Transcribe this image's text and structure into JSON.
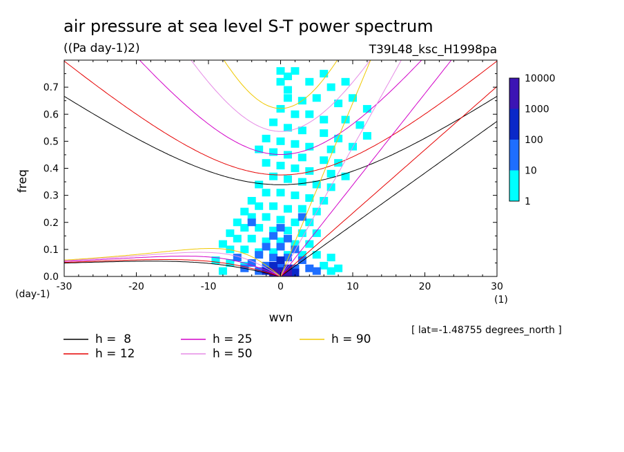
{
  "chart_data": {
    "type": "heatmap",
    "title": "air pressure at sea level S-T power spectrum",
    "units": "((Pa day-1)2)",
    "run_label": "T39L48_ksc_H1998pa",
    "xlabel": "wvn",
    "ylabel": "freq",
    "x_unit": "(1)",
    "y_unit": "(day-1)",
    "xlim": [
      -30,
      30
    ],
    "ylim": [
      0,
      0.8
    ],
    "x_ticks": [
      -30,
      -20,
      -10,
      0,
      10,
      20,
      30
    ],
    "x_tick_labels": [
      "-30",
      "-20",
      "-10",
      "0",
      "10",
      "20",
      "30"
    ],
    "y_ticks": [
      0,
      0.1,
      0.2,
      0.3,
      0.4,
      0.5,
      0.6,
      0.7
    ],
    "y_tick_labels": [
      "0.0",
      "0.1",
      "0.2",
      "0.3",
      "0.4",
      "0.5",
      "0.6",
      "0.7"
    ],
    "annotation": "[ lat=-1.48755 degrees_north ]",
    "colorbar": {
      "levels": [
        1,
        10,
        100,
        1000,
        10000
      ],
      "labels": [
        "1",
        "10",
        "100",
        "1000",
        "10000"
      ],
      "colors": [
        "#00ffff",
        "#1e6eff",
        "#0a28c8",
        "#3c14b4"
      ]
    },
    "heatmap_cells": [
      {
        "x": 0,
        "y": 0.76,
        "level": 0
      },
      {
        "x": 1,
        "y": 0.74,
        "level": 0
      },
      {
        "x": 2,
        "y": 0.76,
        "level": 0
      },
      {
        "x": 0,
        "y": 0.72,
        "level": 0
      },
      {
        "x": 1,
        "y": 0.69,
        "level": 0
      },
      {
        "x": 4,
        "y": 0.72,
        "level": 0
      },
      {
        "x": 6,
        "y": 0.75,
        "level": 0
      },
      {
        "x": 7,
        "y": 0.7,
        "level": 0
      },
      {
        "x": 9,
        "y": 0.72,
        "level": 0
      },
      {
        "x": 1,
        "y": 0.66,
        "level": 0
      },
      {
        "x": 3,
        "y": 0.65,
        "level": 0
      },
      {
        "x": 5,
        "y": 0.66,
        "level": 0
      },
      {
        "x": 8,
        "y": 0.64,
        "level": 0
      },
      {
        "x": 10,
        "y": 0.66,
        "level": 0
      },
      {
        "x": 12,
        "y": 0.62,
        "level": 0
      },
      {
        "x": 0,
        "y": 0.62,
        "level": 0
      },
      {
        "x": 2,
        "y": 0.6,
        "level": 0
      },
      {
        "x": 4,
        "y": 0.6,
        "level": 0
      },
      {
        "x": 6,
        "y": 0.58,
        "level": 0
      },
      {
        "x": 9,
        "y": 0.58,
        "level": 0
      },
      {
        "x": 11,
        "y": 0.56,
        "level": 0
      },
      {
        "x": -1,
        "y": 0.57,
        "level": 0
      },
      {
        "x": 1,
        "y": 0.55,
        "level": 0
      },
      {
        "x": 3,
        "y": 0.54,
        "level": 0
      },
      {
        "x": 6,
        "y": 0.53,
        "level": 0
      },
      {
        "x": 8,
        "y": 0.51,
        "level": 0
      },
      {
        "x": 12,
        "y": 0.52,
        "level": 0
      },
      {
        "x": -2,
        "y": 0.51,
        "level": 0
      },
      {
        "x": 0,
        "y": 0.5,
        "level": 0
      },
      {
        "x": 2,
        "y": 0.49,
        "level": 0
      },
      {
        "x": 4,
        "y": 0.48,
        "level": 0
      },
      {
        "x": 7,
        "y": 0.47,
        "level": 0
      },
      {
        "x": 10,
        "y": 0.48,
        "level": 0
      },
      {
        "x": -3,
        "y": 0.47,
        "level": 0
      },
      {
        "x": -1,
        "y": 0.46,
        "level": 0
      },
      {
        "x": 1,
        "y": 0.45,
        "level": 0
      },
      {
        "x": 3,
        "y": 0.44,
        "level": 0
      },
      {
        "x": 6,
        "y": 0.43,
        "level": 0
      },
      {
        "x": 8,
        "y": 0.42,
        "level": 0
      },
      {
        "x": -2,
        "y": 0.42,
        "level": 0
      },
      {
        "x": 0,
        "y": 0.41,
        "level": 0
      },
      {
        "x": 2,
        "y": 0.4,
        "level": 0
      },
      {
        "x": 4,
        "y": 0.39,
        "level": 0
      },
      {
        "x": 7,
        "y": 0.38,
        "level": 0
      },
      {
        "x": 9,
        "y": 0.37,
        "level": 0
      },
      {
        "x": -1,
        "y": 0.37,
        "level": 0
      },
      {
        "x": 1,
        "y": 0.36,
        "level": 0
      },
      {
        "x": 3,
        "y": 0.35,
        "level": 0
      },
      {
        "x": 5,
        "y": 0.34,
        "level": 0
      },
      {
        "x": 7,
        "y": 0.33,
        "level": 0
      },
      {
        "x": -3,
        "y": 0.34,
        "level": 0
      },
      {
        "x": -2,
        "y": 0.31,
        "level": 0
      },
      {
        "x": 0,
        "y": 0.31,
        "level": 0
      },
      {
        "x": 2,
        "y": 0.3,
        "level": 0
      },
      {
        "x": 4,
        "y": 0.29,
        "level": 0
      },
      {
        "x": 6,
        "y": 0.28,
        "level": 0
      },
      {
        "x": -4,
        "y": 0.28,
        "level": 0
      },
      {
        "x": -3,
        "y": 0.26,
        "level": 0
      },
      {
        "x": -1,
        "y": 0.26,
        "level": 0
      },
      {
        "x": 1,
        "y": 0.25,
        "level": 0
      },
      {
        "x": 3,
        "y": 0.25,
        "level": 0
      },
      {
        "x": 5,
        "y": 0.24,
        "level": 0
      },
      {
        "x": -5,
        "y": 0.24,
        "level": 0
      },
      {
        "x": -4,
        "y": 0.22,
        "level": 0
      },
      {
        "x": -2,
        "y": 0.22,
        "level": 0
      },
      {
        "x": 0,
        "y": 0.21,
        "level": 0
      },
      {
        "x": 2,
        "y": 0.2,
        "level": 0
      },
      {
        "x": 4,
        "y": 0.2,
        "level": 0
      },
      {
        "x": -6,
        "y": 0.2,
        "level": 0
      },
      {
        "x": -5,
        "y": 0.18,
        "level": 0
      },
      {
        "x": -3,
        "y": 0.18,
        "level": 0
      },
      {
        "x": -1,
        "y": 0.17,
        "level": 0
      },
      {
        "x": 1,
        "y": 0.17,
        "level": 0
      },
      {
        "x": 3,
        "y": 0.16,
        "level": 0
      },
      {
        "x": 5,
        "y": 0.16,
        "level": 0
      },
      {
        "x": -7,
        "y": 0.16,
        "level": 0
      },
      {
        "x": -6,
        "y": 0.14,
        "level": 0
      },
      {
        "x": -4,
        "y": 0.14,
        "level": 0
      },
      {
        "x": -2,
        "y": 0.13,
        "level": 0
      },
      {
        "x": 0,
        "y": 0.13,
        "level": 0
      },
      {
        "x": 2,
        "y": 0.12,
        "level": 0
      },
      {
        "x": 4,
        "y": 0.12,
        "level": 0
      },
      {
        "x": -8,
        "y": 0.12,
        "level": 0
      },
      {
        "x": -7,
        "y": 0.1,
        "level": 0
      },
      {
        "x": -5,
        "y": 0.1,
        "level": 0
      },
      {
        "x": -3,
        "y": 0.09,
        "level": 0
      },
      {
        "x": -1,
        "y": 0.09,
        "level": 0
      },
      {
        "x": 1,
        "y": 0.08,
        "level": 0
      },
      {
        "x": 3,
        "y": 0.08,
        "level": 0
      },
      {
        "x": 5,
        "y": 0.08,
        "level": 0
      },
      {
        "x": 7,
        "y": 0.07,
        "level": 0
      },
      {
        "x": -9,
        "y": 0.06,
        "level": 0
      },
      {
        "x": -7,
        "y": 0.05,
        "level": 0
      },
      {
        "x": -5,
        "y": 0.04,
        "level": 0
      },
      {
        "x": 6,
        "y": 0.04,
        "level": 0
      },
      {
        "x": 8,
        "y": 0.03,
        "level": 0
      },
      {
        "x": -8,
        "y": 0.02,
        "level": 0
      },
      {
        "x": 7,
        "y": 0.02,
        "level": 0
      },
      {
        "x": 0,
        "y": 0.18,
        "level": 1
      },
      {
        "x": -1,
        "y": 0.15,
        "level": 1
      },
      {
        "x": 1,
        "y": 0.14,
        "level": 1
      },
      {
        "x": -2,
        "y": 0.11,
        "level": 1
      },
      {
        "x": 0,
        "y": 0.11,
        "level": 1
      },
      {
        "x": 2,
        "y": 0.1,
        "level": 1
      },
      {
        "x": -3,
        "y": 0.08,
        "level": 1
      },
      {
        "x": -1,
        "y": 0.07,
        "level": 1
      },
      {
        "x": 1,
        "y": 0.07,
        "level": 1
      },
      {
        "x": 3,
        "y": 0.06,
        "level": 1
      },
      {
        "x": -4,
        "y": 0.05,
        "level": 1
      },
      {
        "x": -2,
        "y": 0.04,
        "level": 1
      },
      {
        "x": 0,
        "y": 0.04,
        "level": 1
      },
      {
        "x": 2,
        "y": 0.03,
        "level": 1
      },
      {
        "x": 4,
        "y": 0.03,
        "level": 1
      },
      {
        "x": -3,
        "y": 0.02,
        "level": 1
      },
      {
        "x": -5,
        "y": 0.03,
        "level": 1
      },
      {
        "x": 5,
        "y": 0.02,
        "level": 1
      },
      {
        "x": -4,
        "y": 0.2,
        "level": 1
      },
      {
        "x": 3,
        "y": 0.22,
        "level": 1
      },
      {
        "x": -6,
        "y": 0.07,
        "level": 1
      },
      {
        "x": -1,
        "y": 0.04,
        "level": 2
      },
      {
        "x": 0,
        "y": 0.06,
        "level": 2
      },
      {
        "x": 1,
        "y": 0.03,
        "level": 2
      },
      {
        "x": -2,
        "y": 0.02,
        "level": 2
      },
      {
        "x": 0,
        "y": 0.02,
        "level": 2
      },
      {
        "x": 2,
        "y": 0.015,
        "level": 2
      },
      {
        "x": -1,
        "y": 0.015,
        "level": 3
      },
      {
        "x": 0,
        "y": 0.01,
        "level": 3
      },
      {
        "x": 1,
        "y": 0.01,
        "level": 3
      }
    ],
    "series": [
      {
        "name": "h =  8",
        "color": "#000000",
        "h": 8
      },
      {
        "name": "h = 12",
        "color": "#e60000",
        "h": 12
      },
      {
        "name": "h = 25",
        "color": "#d200c8",
        "h": 25
      },
      {
        "name": "h = 50",
        "color": "#e68ce6",
        "h": 50
      },
      {
        "name": "h = 90",
        "color": "#f0c800",
        "h": 90
      }
    ]
  }
}
